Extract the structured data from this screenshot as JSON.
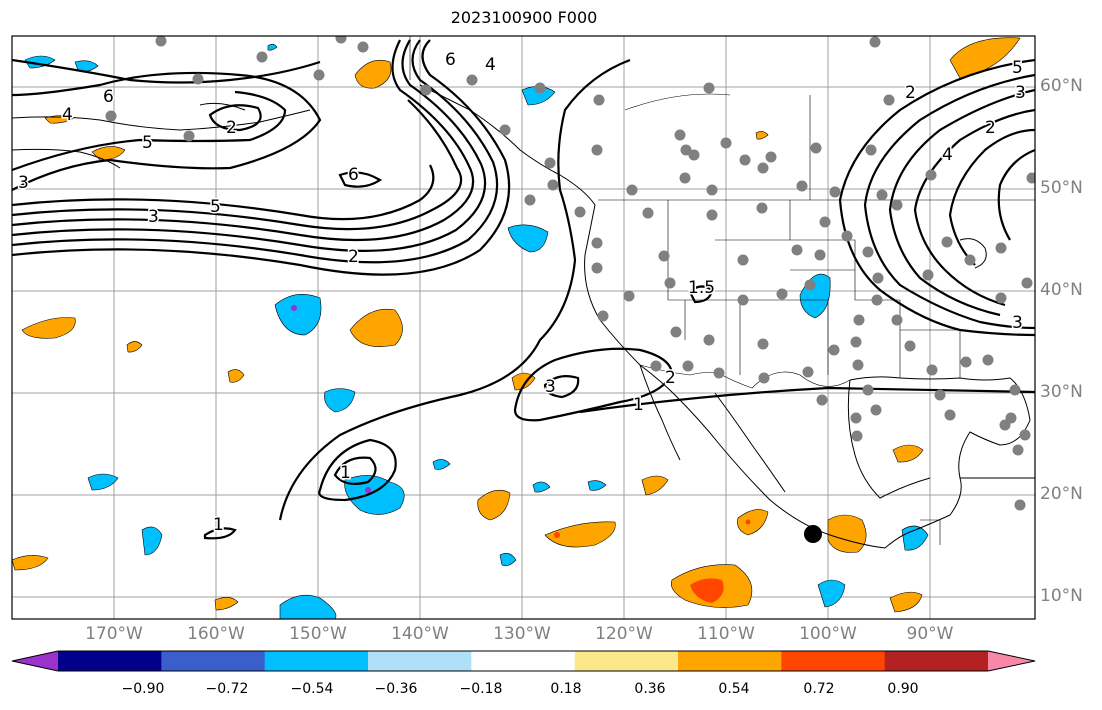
{
  "title": "2023100900 F000",
  "lon_labels": [
    "170°W",
    "160°W",
    "150°W",
    "140°W",
    "130°W",
    "120°W",
    "110°W",
    "100°W",
    "90°W"
  ],
  "lat_labels": [
    "60°N",
    "50°N",
    "40°N",
    "30°N",
    "20°N",
    "10°N"
  ],
  "colorbar": {
    "colors": [
      "#9933cc",
      "#00008b",
      "#3a5fcd",
      "#00bfff",
      "#b0e0f8",
      "#ffffff",
      "#fbe88a",
      "#ffa500",
      "#ff4500",
      "#b22222",
      "#f988a8"
    ],
    "ticks": [
      "−0.90",
      "−0.72",
      "−0.54",
      "−0.36",
      "−0.18",
      "0.18",
      "0.36",
      "0.54",
      "0.72",
      "0.90"
    ]
  },
  "contour_labels": [
    "6",
    "4",
    "5",
    "3",
    "2",
    "1",
    "6",
    "4",
    "3",
    "5",
    "2",
    "3",
    "1",
    "2",
    "1",
    "1.5",
    "2",
    "3",
    "4",
    "5",
    "6",
    "2",
    "3"
  ],
  "marker_color": "#808080",
  "storm_marker_color": "#000000"
}
